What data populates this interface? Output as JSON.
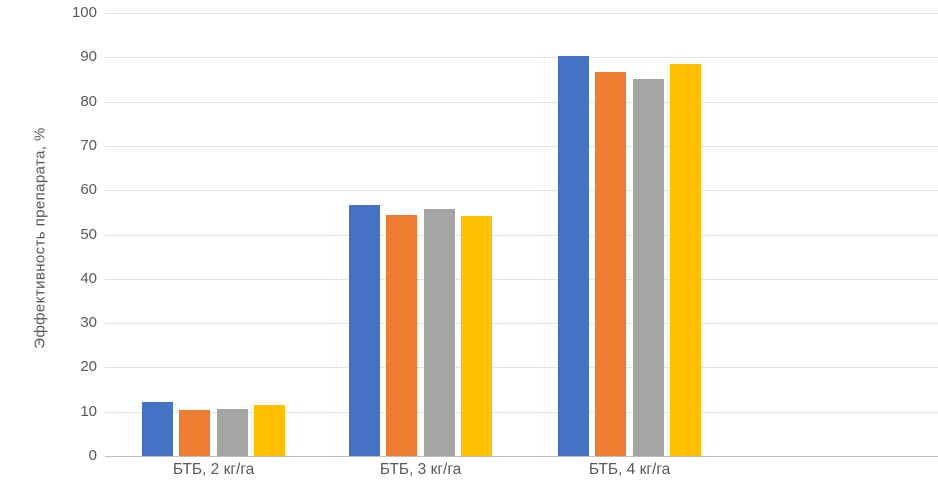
{
  "chart_data": {
    "type": "bar",
    "title": "",
    "xlabel": "",
    "ylabel": "Эффективность препарата, %",
    "categories": [
      "БТБ, 2 кг/га",
      "БТБ, 3 кг/га",
      "БТБ, 4 кг/га"
    ],
    "series": [
      {
        "name": "series-1-blue",
        "color": "#4472C4",
        "values": [
          12.2,
          56.6,
          90.4
        ]
      },
      {
        "name": "series-2-orange",
        "color": "#ED7D31",
        "values": [
          10.4,
          54.5,
          86.7
        ]
      },
      {
        "name": "series-3-gray",
        "color": "#A5A5A5",
        "values": [
          10.5,
          55.7,
          85.0
        ]
      },
      {
        "name": "series-4-yellow",
        "color": "#FFC000",
        "values": [
          11.6,
          54.2,
          88.6
        ]
      }
    ],
    "ylim": [
      0,
      100
    ],
    "yticks": [
      0,
      10,
      20,
      30,
      40,
      50,
      60,
      70,
      80,
      90,
      100
    ],
    "grid": true,
    "legend": "none"
  }
}
